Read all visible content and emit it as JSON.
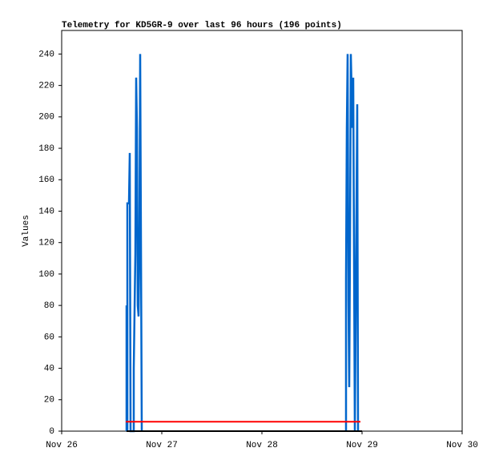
{
  "chart_data": {
    "type": "line",
    "title": "Telemetry for KD5GR-9 over last 96 hours (196 points)",
    "y_label": "Values",
    "xlim": [
      0,
      4
    ],
    "xticks": [
      {
        "value": 0,
        "label": "Nov 26"
      },
      {
        "value": 1,
        "label": "Nov 27"
      },
      {
        "value": 2,
        "label": "Nov 28"
      },
      {
        "value": 3,
        "label": "Nov 29"
      },
      {
        "value": 4,
        "label": "Nov 30"
      }
    ],
    "ylim": [
      0,
      255
    ],
    "yticks": [
      0,
      20,
      40,
      60,
      80,
      100,
      120,
      140,
      160,
      180,
      200,
      220,
      240
    ],
    "series": [
      {
        "color": "#0066cc",
        "x": [
          0.648,
          0.648,
          0.656,
          0.656,
          0.672,
          0.68,
          0.688,
          0.72,
          0.72,
          0.736,
          0.744,
          0.752,
          0.76,
          0.768,
          0.776,
          0.784,
          0.8,
          null,
          2.84,
          2.84,
          2.848,
          2.856,
          2.864,
          2.872,
          2.88,
          2.888,
          2.904,
          2.912,
          2.928,
          2.952,
          2.96
        ],
        "values": [
          0,
          80,
          0,
          145,
          145,
          177,
          0,
          0,
          40,
          113,
          225,
          193,
          80,
          73,
          120,
          240,
          0,
          null,
          0,
          97,
          193,
          240,
          84,
          28,
          120,
          240,
          193,
          225,
          0,
          208,
          0
        ]
      },
      {
        "color": "#ff0000",
        "x": [
          0.64,
          2.984
        ],
        "values": [
          6,
          6
        ]
      },
      {
        "color": "#000000",
        "x": [
          0.648,
          3.0
        ],
        "values": [
          0,
          0
        ]
      }
    ]
  }
}
